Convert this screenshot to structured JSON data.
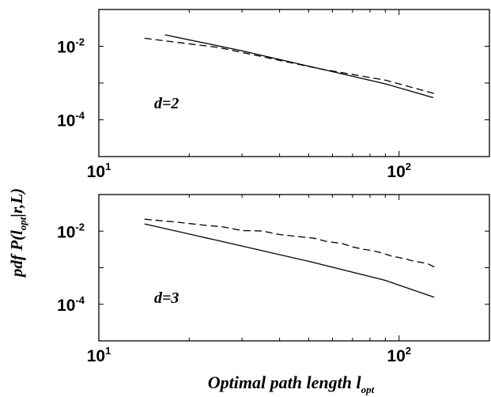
{
  "chart_data": [
    {
      "type": "line",
      "panel_label": "d=2",
      "xscale": "log",
      "yscale": "log",
      "xlim": [
        10,
        200
      ],
      "ylim": [
        1e-05,
        0.1
      ],
      "x_ticks": [
        {
          "value": 10,
          "base": "10",
          "exp": "1"
        },
        {
          "value": 100,
          "base": "10",
          "exp": "2"
        }
      ],
      "y_ticks": [
        {
          "value": 0.01,
          "base": "10",
          "exp": "-2"
        },
        {
          "value": 0.0001,
          "base": "10",
          "exp": "-4"
        }
      ],
      "series": [
        {
          "style": "solid",
          "x": [
            16.6,
            30,
            55,
            90,
            130
          ],
          "y": [
            0.0205,
            0.0075,
            0.0024,
            0.00095,
            0.0004
          ]
        },
        {
          "style": "dashed",
          "x": [
            14.2,
            25,
            55,
            90,
            131
          ],
          "y": [
            0.0165,
            0.0093,
            0.0024,
            0.0012,
            0.00052
          ]
        }
      ]
    },
    {
      "type": "line",
      "panel_label": "d=3",
      "xscale": "log",
      "yscale": "log",
      "xlim": [
        10,
        200
      ],
      "ylim": [
        1e-05,
        0.1
      ],
      "x_ticks": [
        {
          "value": 10,
          "base": "10",
          "exp": "1"
        },
        {
          "value": 100,
          "base": "10",
          "exp": "2"
        }
      ],
      "y_ticks": [
        {
          "value": 0.01,
          "base": "10",
          "exp": "-2"
        },
        {
          "value": 0.0001,
          "base": "10",
          "exp": "-4"
        }
      ],
      "series": [
        {
          "style": "solid",
          "x": [
            14.2,
            25,
            50,
            90,
            131
          ],
          "y": [
            0.0158,
            0.0055,
            0.0015,
            0.00045,
            0.000155
          ]
        },
        {
          "style": "dashed",
          "x": [
            14.2,
            18,
            22,
            26,
            30,
            35,
            40,
            46,
            52,
            58,
            64,
            70,
            76,
            82,
            88,
            94,
            100,
            106,
            112,
            118,
            124,
            131
          ],
          "y": [
            0.0212,
            0.0178,
            0.0148,
            0.013,
            0.0104,
            0.0101,
            0.0081,
            0.0071,
            0.0064,
            0.0051,
            0.0047,
            0.0037,
            0.0032,
            0.0029,
            0.0025,
            0.0021,
            0.0019,
            0.0017,
            0.0015,
            0.0014,
            0.0013,
            0.00105
          ]
        }
      ]
    }
  ],
  "ylabel": {
    "prefix": "pdf P(l",
    "sub": "opt",
    "suffix": "|r,L)"
  },
  "xlabel": {
    "main": "Optimal path length l",
    "sub": "opt"
  }
}
